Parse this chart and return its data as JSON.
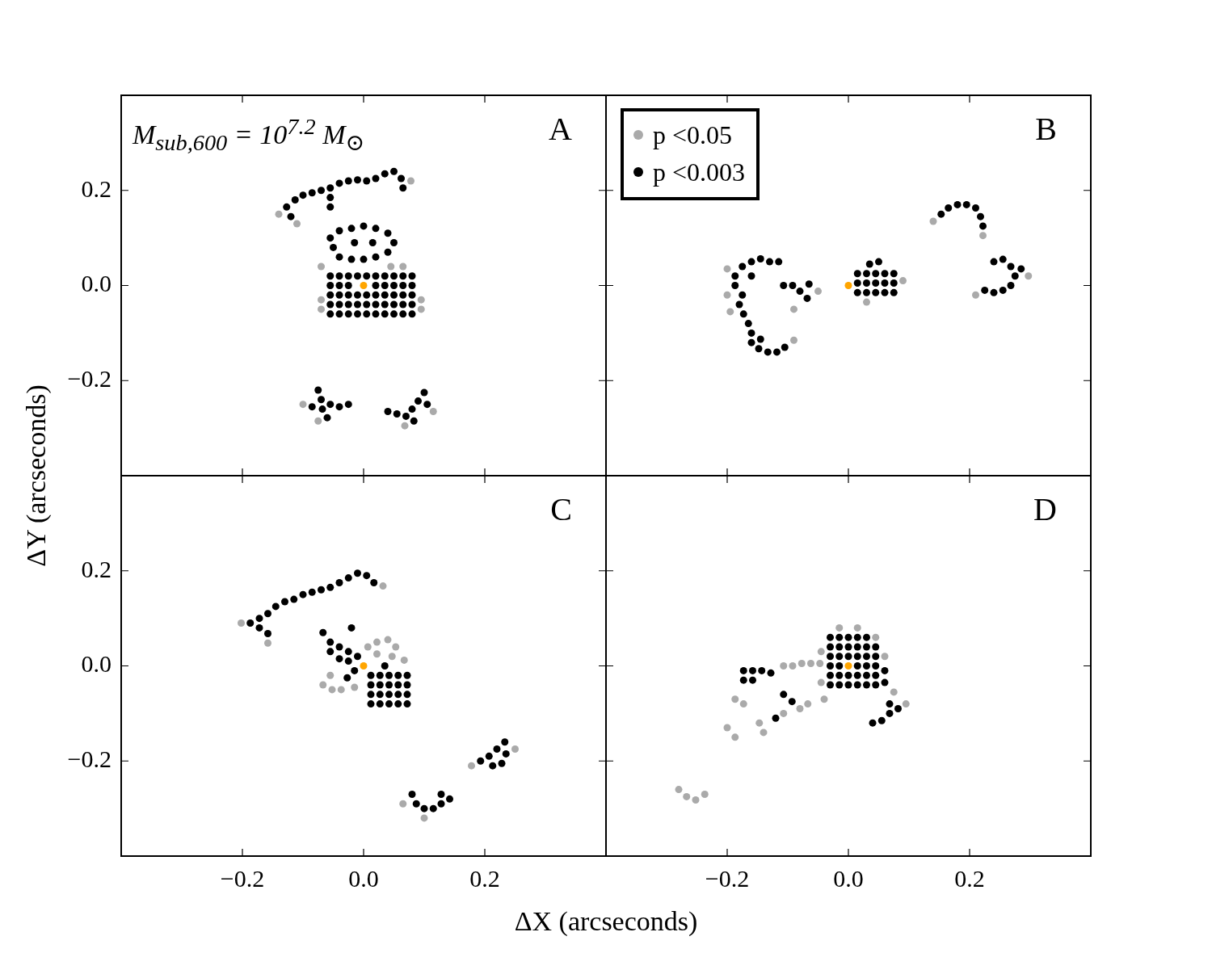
{
  "chart_data": [
    {
      "type": "scatter",
      "ylabel": "ΔY (arcseconds)",
      "xlim": [
        -0.4,
        0.4
      ],
      "ylim": [
        -0.4,
        0.4
      ],
      "xticks": [
        {
          "value": -0.2,
          "label": null
        },
        {
          "value": 0,
          "label": null
        },
        {
          "value": 0.2,
          "label": null
        }
      ],
      "yticks": [
        {
          "value": -0.2,
          "label": "−0.2"
        },
        {
          "value": 0,
          "label": "0.0"
        },
        0.2
      ],
      "tick_labels": "y",
      "marker": "circle",
      "annotations": [
        "M$_{sub,600}$ = 10$^{7.2}$ M$_{⊙}$",
        "A"
      ],
      "series": [
        {
          "color": "#aaaaaa",
          "x": [
            -0.14,
            -0.11,
            0.078,
            -0.07,
            0.095,
            0.095,
            -0.07,
            -0.07,
            0.065,
            0.045,
            -0.1,
            -0.075,
            0.115,
            0.068
          ],
          "values": [
            0.15,
            0.13,
            0.22,
            0.04,
            -0.03,
            -0.05,
            -0.03,
            -0.05,
            0.04,
            0.04,
            -0.25,
            -0.285,
            -0.265,
            -0.295
          ]
        },
        {
          "color": "#000000",
          "x": [
            -0.127,
            -0.113,
            -0.1,
            -0.085,
            -0.07,
            -0.055,
            -0.04,
            -0.025,
            -0.01,
            0.005,
            0.02,
            0.035,
            0.05,
            0.062,
            0.065,
            -0.12,
            -0.055,
            -0.055,
            -0.055,
            -0.05,
            -0.04,
            -0.02,
            0,
            0.02,
            0.04,
            0.05,
            0.04,
            0.02,
            0,
            -0.02,
            -0.04,
            0.015,
            -0.015,
            -0.055,
            -0.04,
            -0.025,
            -0.01,
            0.005,
            0.02,
            0.035,
            0.05,
            0.065,
            0.08,
            -0.055,
            -0.04,
            -0.025,
            -0.01,
            0.005,
            0.02,
            0.035,
            0.05,
            0.065,
            0.08,
            -0.055,
            -0.04,
            -0.025,
            -0.01,
            0.005,
            0.02,
            0.035,
            0.05,
            0.065,
            0.08,
            -0.055,
            -0.04,
            -0.025,
            -0.01,
            0.005,
            0.02,
            0.035,
            0.05,
            0.065,
            0.08,
            -0.055,
            -0.04,
            -0.025,
            0.02,
            0.035,
            0.05,
            0.065,
            0.08,
            -0.075,
            -0.07,
            -0.068,
            -0.055,
            -0.04,
            -0.025,
            -0.085,
            -0.06,
            0.04,
            0.055,
            0.07,
            0.08,
            0.09,
            0.1,
            0.105,
            0.083
          ],
          "values": [
            0.165,
            0.18,
            0.19,
            0.195,
            0.2,
            0.205,
            0.215,
            0.22,
            0.222,
            0.22,
            0.225,
            0.235,
            0.24,
            0.225,
            0.205,
            0.145,
            0.185,
            0.165,
            0.1,
            0.08,
            0.06,
            0.055,
            0.055,
            0.06,
            0.07,
            0.09,
            0.11,
            0.12,
            0.125,
            0.12,
            0.115,
            0.09,
            0.09,
            -0.06,
            -0.06,
            -0.06,
            -0.06,
            -0.06,
            -0.06,
            -0.06,
            -0.06,
            -0.06,
            -0.06,
            -0.04,
            -0.04,
            -0.04,
            -0.04,
            -0.04,
            -0.04,
            -0.04,
            -0.04,
            -0.04,
            -0.04,
            -0.02,
            -0.02,
            -0.02,
            -0.02,
            -0.02,
            -0.02,
            -0.02,
            -0.02,
            -0.02,
            -0.02,
            0.02,
            0.02,
            0.02,
            0.02,
            0.02,
            0.02,
            0.02,
            0.02,
            0.02,
            0.02,
            0,
            0,
            0,
            0,
            0,
            0,
            0,
            0,
            -0.22,
            -0.24,
            -0.26,
            -0.25,
            -0.255,
            -0.25,
            -0.255,
            -0.278,
            -0.265,
            -0.27,
            -0.275,
            -0.26,
            -0.243,
            -0.225,
            -0.25,
            -0.285
          ]
        },
        {
          "color": "#ffa500",
          "x": [
            0
          ],
          "values": [
            0
          ]
        }
      ]
    },
    {
      "type": "scatter",
      "xlim": [
        -0.4,
        0.4
      ],
      "ylim": [
        -0.4,
        0.4
      ],
      "xticks": [
        {
          "value": -0.2,
          "label": null
        },
        {
          "value": 0,
          "label": null
        },
        {
          "value": 0.2,
          "label": null
        }
      ],
      "yticks": [
        {
          "value": -0.2,
          "label": null
        },
        {
          "value": 0,
          "label": null
        },
        {
          "value": 0.2,
          "label": null
        }
      ],
      "tick_labels": false,
      "marker": "circle",
      "legend": "top left",
      "annotations": [
        "B"
      ],
      "series": [
        {
          "name": "p <0.05",
          "color": "#aaaaaa",
          "x": [
            -0.2,
            -0.2,
            -0.195,
            -0.09,
            -0.09,
            -0.05,
            0.14,
            0.222,
            0.21,
            0.297,
            0.09,
            0.03
          ],
          "values": [
            0.035,
            -0.02,
            -0.055,
            -0.115,
            -0.05,
            -0.012,
            0.135,
            0.105,
            -0.02,
            0.02,
            0.01,
            -0.035
          ]
        },
        {
          "name": "p <0.003",
          "color": "#000000",
          "x": [
            -0.187,
            -0.187,
            -0.175,
            -0.16,
            -0.145,
            -0.13,
            -0.115,
            -0.175,
            -0.18,
            -0.173,
            -0.165,
            -0.16,
            -0.16,
            -0.148,
            -0.133,
            -0.118,
            -0.105,
            -0.145,
            -0.16,
            -0.107,
            -0.092,
            -0.08,
            -0.068,
            -0.065,
            0.015,
            0.03,
            0.045,
            0.06,
            0.075,
            0.015,
            0.03,
            0.045,
            0.06,
            0.075,
            0.015,
            0.03,
            0.045,
            0.06,
            0.075,
            0.035,
            0.05,
            0.153,
            0.165,
            0.18,
            0.195,
            0.21,
            0.218,
            0.222,
            0.24,
            0.255,
            0.268,
            0.275,
            0.268,
            0.255,
            0.24,
            0.225,
            0.285
          ],
          "values": [
            0.02,
            0,
            0.04,
            0.05,
            0.056,
            0.05,
            0.05,
            -0.02,
            -0.04,
            -0.06,
            -0.08,
            -0.1,
            -0.12,
            -0.133,
            -0.14,
            -0.14,
            -0.13,
            -0.113,
            0.02,
            0,
            0,
            -0.012,
            -0.027,
            0.003,
            -0.015,
            -0.015,
            -0.015,
            -0.015,
            -0.015,
            0.005,
            0.005,
            0.005,
            0.005,
            0.005,
            0.025,
            0.025,
            0.025,
            0.025,
            0.025,
            0.045,
            0.05,
            0.15,
            0.163,
            0.17,
            0.17,
            0.163,
            0.145,
            0.125,
            0.05,
            0.055,
            0.04,
            0.02,
            0,
            -0.01,
            -0.015,
            -0.01,
            0.035
          ]
        },
        {
          "color": "#ffa500",
          "x": [
            0
          ],
          "values": [
            0
          ]
        }
      ]
    },
    {
      "type": "scatter",
      "xlabel": "ΔX (arcseconds)",
      "xlim": [
        -0.4,
        0.4
      ],
      "ylim": [
        -0.4,
        0.4
      ],
      "xticks": [
        {
          "value": -0.2,
          "label": "−0.2"
        },
        {
          "value": 0,
          "label": "0.0"
        },
        0.2
      ],
      "yticks": [
        {
          "value": -0.2,
          "label": "−0.2"
        },
        {
          "value": 0,
          "label": "0.0"
        },
        0.2
      ],
      "marker": "circle",
      "annotations": [
        "C"
      ],
      "series": [
        {
          "color": "#aaaaaa",
          "x": [
            -0.055,
            -0.067,
            -0.052,
            -0.037,
            0.007,
            0.022,
            0.04,
            0.053,
            0.067,
            0.047,
            0.022,
            -0.015,
            -0.202,
            -0.158,
            0.032,
            0.178,
            0.065,
            0.25,
            0.1
          ],
          "values": [
            -0.02,
            -0.04,
            -0.05,
            -0.05,
            0.04,
            0.05,
            0.055,
            0.04,
            0.012,
            0.02,
            0.025,
            -0.045,
            0.09,
            0.048,
            0.168,
            -0.21,
            -0.29,
            -0.175,
            -0.32
          ]
        },
        {
          "color": "#000000",
          "x": [
            -0.187,
            -0.172,
            -0.172,
            -0.158,
            -0.158,
            -0.145,
            -0.13,
            -0.115,
            -0.1,
            -0.085,
            -0.07,
            -0.055,
            -0.04,
            -0.025,
            -0.01,
            0.005,
            0.017,
            -0.067,
            -0.055,
            -0.04,
            -0.025,
            -0.025,
            -0.04,
            -0.055,
            -0.01,
            -0.015,
            -0.027,
            -0.02,
            0.012,
            0.027,
            0.042,
            0.057,
            0.072,
            0.012,
            0.027,
            0.042,
            0.057,
            0.072,
            0.012,
            0.027,
            0.042,
            0.057,
            0.072,
            0.012,
            0.027,
            0.042,
            0.057,
            0.072,
            0.035,
            0.193,
            0.207,
            0.22,
            0.233,
            0.235,
            0.228,
            0.213,
            0.08,
            0.087,
            0.1,
            0.115,
            0.128,
            0.128,
            0.142
          ],
          "values": [
            0.09,
            0.1,
            0.08,
            0.068,
            0.11,
            0.125,
            0.135,
            0.14,
            0.15,
            0.155,
            0.16,
            0.165,
            0.175,
            0.185,
            0.195,
            0.19,
            0.175,
            0.07,
            0.05,
            0.04,
            0.03,
            0.01,
            0.015,
            0.03,
            0.02,
            -0.01,
            -0.025,
            0.08,
            -0.08,
            -0.08,
            -0.08,
            -0.08,
            -0.08,
            -0.06,
            -0.06,
            -0.06,
            -0.06,
            -0.06,
            -0.04,
            -0.04,
            -0.04,
            -0.04,
            -0.04,
            -0.02,
            -0.02,
            -0.02,
            -0.02,
            -0.02,
            0,
            -0.2,
            -0.19,
            -0.175,
            -0.16,
            -0.185,
            -0.205,
            -0.21,
            -0.27,
            -0.29,
            -0.3,
            -0.3,
            -0.29,
            -0.27,
            -0.28
          ]
        },
        {
          "color": "#ffa500",
          "x": [
            0
          ],
          "values": [
            0
          ]
        }
      ]
    },
    {
      "type": "scatter",
      "xlim": [
        -0.4,
        0.4
      ],
      "ylim": [
        -0.4,
        0.4
      ],
      "xticks": [
        {
          "value": -0.2,
          "label": "−0.2"
        },
        {
          "value": 0,
          "label": "0.0"
        },
        0.2
      ],
      "yticks": [
        {
          "value": -0.2,
          "label": null
        },
        {
          "value": 0,
          "label": null
        },
        {
          "value": 0.2,
          "label": null
        }
      ],
      "tick_labels": "x",
      "marker": "circle",
      "annotations": [
        "D"
      ],
      "series": [
        {
          "color": "#aaaaaa",
          "x": [
            -0.045,
            -0.015,
            0.015,
            0.045,
            0.06,
            0.075,
            0.095,
            -0.045,
            -0.107,
            -0.092,
            -0.077,
            -0.062,
            -0.047,
            -0.04,
            -0.067,
            -0.08,
            -0.107,
            -0.147,
            -0.14,
            -0.173,
            -0.187,
            -0.2,
            -0.187,
            -0.28,
            -0.267,
            -0.252,
            -0.237
          ],
          "values": [
            0.03,
            0.08,
            0.08,
            0.06,
            0.02,
            -0.055,
            -0.08,
            -0.035,
            0,
            0,
            0.005,
            0.005,
            0.005,
            -0.07,
            -0.08,
            -0.09,
            -0.1,
            -0.12,
            -0.14,
            -0.08,
            -0.07,
            -0.13,
            -0.15,
            -0.26,
            -0.275,
            -0.282,
            -0.27
          ]
        },
        {
          "color": "#000000",
          "x": [
            -0.03,
            -0.015,
            0,
            0.015,
            0.03,
            0.045,
            -0.03,
            -0.015,
            0,
            0.015,
            0.03,
            0.045,
            -0.03,
            -0.015,
            0,
            0.015,
            0.03,
            0.045,
            -0.03,
            -0.015,
            0,
            0.015,
            0.03,
            0.045,
            -0.03,
            -0.015,
            0,
            0.015,
            0.03,
            -0.03,
            -0.015,
            0.015,
            0.03,
            0.045,
            0.06,
            0.06,
            0.04,
            0.055,
            0.068,
            0.068,
            0.082,
            -0.173,
            -0.158,
            -0.143,
            -0.128,
            -0.173,
            -0.158,
            -0.107,
            -0.093,
            -0.12
          ],
          "values": [
            -0.04,
            -0.04,
            -0.04,
            -0.04,
            -0.04,
            -0.04,
            -0.02,
            -0.02,
            -0.02,
            -0.02,
            -0.02,
            -0.02,
            0.02,
            0.02,
            0.02,
            0.02,
            0.02,
            0.02,
            0.04,
            0.04,
            0.04,
            0.04,
            0.04,
            0.04,
            0.06,
            0.06,
            0.06,
            0.06,
            0.06,
            0,
            0,
            0,
            0,
            0,
            -0.01,
            -0.035,
            -0.12,
            -0.115,
            -0.1,
            -0.08,
            -0.09,
            -0.01,
            -0.01,
            -0.01,
            -0.015,
            -0.03,
            -0.03,
            -0.06,
            -0.075,
            -0.11
          ]
        },
        {
          "color": "#ffa500",
          "x": [
            0
          ],
          "values": [
            0
          ]
        }
      ]
    }
  ]
}
